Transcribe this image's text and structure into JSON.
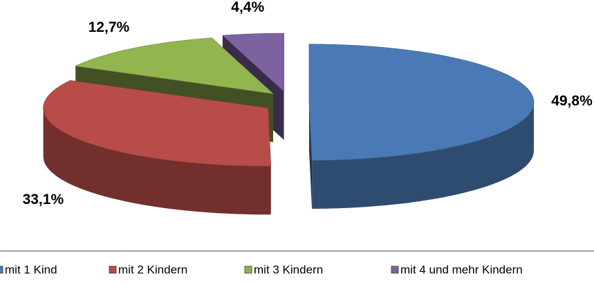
{
  "chart_data": {
    "type": "pie3d",
    "categories": [
      "mit 1 Kind",
      "mit 2 Kindern",
      "mit 3 Kindern",
      "mit 4 und mehr Kindern"
    ],
    "values": [
      49.8,
      33.1,
      12.7,
      4.4
    ],
    "value_labels": [
      "49,8%",
      "33,1%",
      "12,7%",
      "4,4%"
    ],
    "colors": [
      "#4a7ab5",
      "#b84c49",
      "#93b54f",
      "#7d62a0"
    ],
    "legend": "bottom"
  }
}
